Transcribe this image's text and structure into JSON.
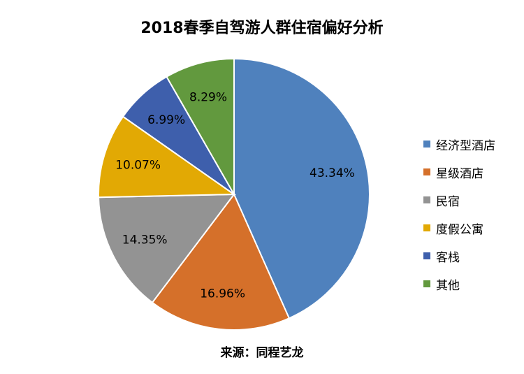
{
  "chart_data": {
    "type": "pie",
    "title": "2018春季自驾游人群住宿偏好分析",
    "source_note": "来源：同程艺龙",
    "slices": [
      {
        "label": "经济型酒店",
        "value": 43.34,
        "display": "43.34%",
        "color": "#4f81bd"
      },
      {
        "label": "星级酒店",
        "value": 16.96,
        "display": "16.96%",
        "color": "#d5702a"
      },
      {
        "label": "民宿",
        "value": 14.35,
        "display": "14.35%",
        "color": "#939393"
      },
      {
        "label": "度假公寓",
        "value": 10.07,
        "display": "10.07%",
        "color": "#e2a904"
      },
      {
        "label": "客栈",
        "value": 6.99,
        "display": "6.99%",
        "color": "#3e5fac"
      },
      {
        "label": "其他",
        "value": 8.29,
        "display": "8.29%",
        "color": "#62993e"
      }
    ],
    "start_angle": "12 o'clock",
    "direction": "clockwise",
    "legend_position": "right"
  }
}
